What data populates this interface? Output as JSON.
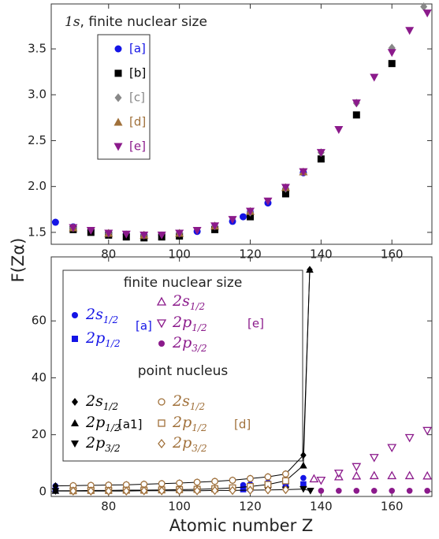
{
  "chart_data": [
    {
      "type": "scatter",
      "title_orbital": "1s",
      "title": ", finite nuclear size",
      "ylabel": "F(Zα)",
      "xlim": [
        63.8,
        171.3
      ],
      "xticks": [
        80,
        100,
        120,
        140,
        160
      ],
      "ylim": [
        1.37,
        3.99
      ],
      "yticks": [
        1.5,
        {
          "value": 2,
          "label": "2.0"
        },
        2.5,
        {
          "value": 3,
          "label": "3.0"
        },
        3.5
      ],
      "series": [
        {
          "name": "[a]",
          "color": "#1414e6",
          "marker": "circle",
          "x": [
            65,
            70,
            75,
            80,
            85,
            90,
            95,
            100,
            105,
            110,
            115,
            118,
            120,
            125,
            130,
            135
          ],
          "values": [
            1.61,
            1.56,
            1.52,
            1.49,
            1.48,
            1.47,
            1.47,
            1.48,
            1.51,
            1.56,
            1.62,
            1.67,
            1.72,
            1.82,
            1.97,
            2.15
          ]
        },
        {
          "name": "[b]",
          "color": "#000000",
          "marker": "square",
          "x": [
            70,
            75,
            80,
            85,
            90,
            95,
            100,
            110,
            120,
            130,
            140,
            150,
            160
          ],
          "values": [
            1.53,
            1.5,
            1.47,
            1.45,
            1.44,
            1.45,
            1.46,
            1.53,
            1.67,
            1.92,
            2.3,
            2.78,
            3.34
          ]
        },
        {
          "name": "[c]",
          "color": "#888888",
          "marker": "diamond",
          "x": [
            70,
            80,
            90,
            100,
            110,
            120,
            130,
            140,
            150,
            160,
            169
          ],
          "values": [
            1.55,
            1.49,
            1.47,
            1.49,
            1.57,
            1.72,
            1.98,
            2.37,
            2.91,
            3.51,
            3.96
          ]
        },
        {
          "name": "[d]",
          "color": "#a0703a",
          "marker": "triangle-up",
          "x": [
            70,
            80,
            90,
            100,
            110,
            120,
            130,
            135
          ],
          "values": [
            1.55,
            1.49,
            1.47,
            1.49,
            1.57,
            1.73,
            1.99,
            2.16
          ]
        },
        {
          "name": "[e]",
          "color": "#8b1a8b",
          "marker": "triangle-down",
          "x": [
            70,
            75,
            80,
            85,
            90,
            95,
            100,
            105,
            110,
            115,
            120,
            125,
            130,
            135,
            140,
            145,
            150,
            155,
            160,
            165,
            170
          ],
          "values": [
            1.55,
            1.52,
            1.49,
            1.48,
            1.47,
            1.47,
            1.49,
            1.52,
            1.57,
            1.64,
            1.73,
            1.84,
            1.99,
            2.16,
            2.37,
            2.62,
            2.91,
            3.19,
            3.46,
            3.7,
            3.89
          ]
        }
      ]
    },
    {
      "type": "scatter",
      "xlabel": "Atomic number Z",
      "xlim": [
        63.8,
        171.3
      ],
      "xticks": [
        80,
        100,
        120,
        140,
        160
      ],
      "ylim": [
        -1.7,
        82.5
      ],
      "yticks": [
        0,
        20,
        40,
        60
      ],
      "legend_headings": [
        "finite nuclear size",
        "point nucleus"
      ],
      "legend_refs": [
        {
          "text": "[a]",
          "color": "#1414e6"
        },
        {
          "text": "[e]",
          "color": "#8b1a8b"
        },
        {
          "text": "[a1]",
          "color": "#000000"
        },
        {
          "text": "[d]",
          "color": "#a0703a"
        }
      ],
      "series": [
        {
          "name": "2s",
          "subscript": "1/2",
          "color": "#1414e6",
          "marker": "circle",
          "x": [
            65,
            70,
            75,
            80,
            85,
            90,
            95,
            100,
            105,
            110,
            115,
            118,
            120,
            125,
            130,
            135
          ],
          "values": [
            2.0,
            2.1,
            2.2,
            2.3,
            2.4,
            2.6,
            2.8,
            3.0,
            3.3,
            3.6,
            3.9,
            2.3,
            2.6,
            3.2,
            4.0,
            4.8
          ]
        },
        {
          "name": "2p",
          "subscript": "1/2",
          "color": "#1414e6",
          "marker": "square",
          "x": [
            65,
            70,
            75,
            80,
            85,
            90,
            95,
            100,
            105,
            110,
            115,
            118,
            120,
            125,
            130,
            135
          ],
          "values": [
            0.3,
            0.3,
            0.4,
            0.4,
            0.5,
            0.5,
            0.6,
            0.7,
            0.8,
            1.0,
            1.2,
            0.8,
            1.0,
            1.4,
            1.9,
            2.6
          ]
        },
        {
          "name": "2s",
          "subscript": "1/2",
          "color": "#8b1a8b",
          "marker": "triangle-up",
          "open": true,
          "x": [
            138,
            145,
            150,
            155,
            160,
            165,
            170
          ],
          "values": [
            4.5,
            5.2,
            5.5,
            5.6,
            5.6,
            5.6,
            5.5
          ]
        },
        {
          "name": "2p",
          "subscript": "1/2",
          "color": "#8b1a8b",
          "marker": "triangle-down",
          "open": true,
          "x": [
            140,
            145,
            150,
            155,
            160,
            165,
            170
          ],
          "values": [
            4.0,
            6.5,
            8.8,
            12,
            15.5,
            19,
            21.5
          ]
        },
        {
          "name": "2p",
          "subscript": "3/2",
          "color": "#8b1a8b",
          "marker": "circle",
          "x": [
            140,
            145,
            150,
            155,
            160,
            165,
            170
          ],
          "values": [
            0.3,
            0.3,
            0.3,
            0.3,
            0.3,
            0.3,
            0.3
          ]
        },
        {
          "name": "2s",
          "subscript": "1/2",
          "color": "#000000",
          "marker": "diamond",
          "line": true,
          "x": [
            65,
            70,
            75,
            80,
            85,
            90,
            95,
            100,
            105,
            110,
            115,
            120,
            125,
            130,
            135,
            136.8
          ],
          "values": [
            2.0,
            2.1,
            2.2,
            2.3,
            2.4,
            2.6,
            2.8,
            3.0,
            3.3,
            3.6,
            4.0,
            4.6,
            5.2,
            6.2,
            12.8,
            78
          ]
        },
        {
          "name": "2p",
          "subscript": "1/2",
          "color": "#000000",
          "marker": "triangle-up",
          "line": true,
          "x": [
            65,
            70,
            75,
            80,
            85,
            90,
            95,
            100,
            105,
            110,
            115,
            120,
            125,
            130,
            135,
            136.8
          ],
          "values": [
            0.3,
            0.3,
            0.4,
            0.4,
            0.5,
            0.5,
            0.6,
            0.7,
            0.8,
            1.0,
            1.3,
            1.8,
            2.5,
            3.8,
            9.2,
            78
          ]
        },
        {
          "name": "2p",
          "subscript": "3/2",
          "color": "#000000",
          "marker": "triangle-down",
          "line": true,
          "x": [
            65,
            70,
            75,
            80,
            85,
            90,
            95,
            100,
            105,
            110,
            115,
            120,
            125,
            130,
            135,
            137
          ],
          "values": [
            0.2,
            0.2,
            0.2,
            0.2,
            0.2,
            0.3,
            0.3,
            0.3,
            0.3,
            0.4,
            0.4,
            0.5,
            0.6,
            0.7,
            0.9,
            0.3
          ]
        },
        {
          "name": "2s",
          "subscript": "1/2",
          "color": "#a0703a",
          "marker": "circle",
          "open": true,
          "x": [
            70,
            75,
            80,
            85,
            90,
            95,
            100,
            105,
            110,
            115,
            120,
            125,
            130
          ],
          "values": [
            2.1,
            2.2,
            2.3,
            2.4,
            2.6,
            2.8,
            3.0,
            3.3,
            3.6,
            4.0,
            4.6,
            5.2,
            6.2
          ]
        },
        {
          "name": "2p",
          "subscript": "1/2",
          "color": "#a0703a",
          "marker": "square",
          "open": true,
          "x": [
            70,
            75,
            80,
            85,
            90,
            95,
            100,
            105,
            110,
            115,
            120,
            125,
            130
          ],
          "values": [
            0.3,
            0.4,
            0.4,
            0.5,
            0.5,
            0.6,
            0.7,
            0.8,
            1.0,
            1.3,
            1.8,
            2.5,
            3.8
          ]
        },
        {
          "name": "2p",
          "subscript": "3/2",
          "color": "#a0703a",
          "marker": "diamond",
          "open": true,
          "x": [
            70,
            75,
            80,
            85,
            90,
            95,
            100,
            105,
            110,
            115,
            120,
            125,
            130
          ],
          "values": [
            0.2,
            0.2,
            0.2,
            0.2,
            0.3,
            0.3,
            0.3,
            0.3,
            0.4,
            0.4,
            0.5,
            0.6,
            0.7
          ]
        }
      ]
    }
  ]
}
